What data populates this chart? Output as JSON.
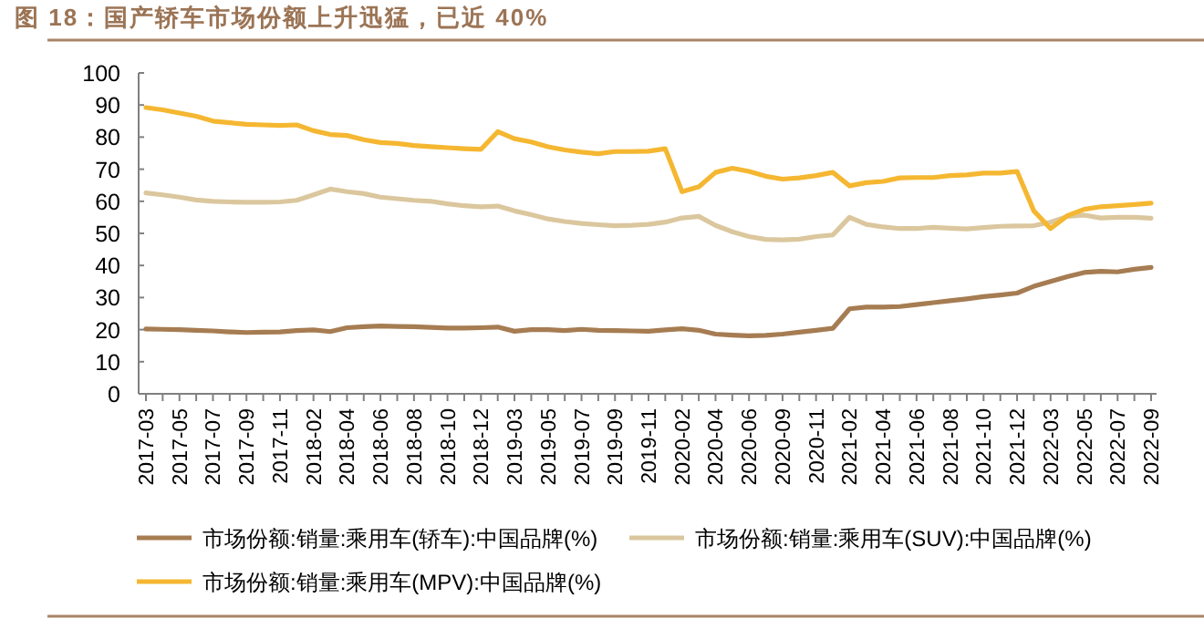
{
  "chart_data": {
    "type": "line",
    "title": "图 18：国产轿车市场份额上升迅猛，已近 40%",
    "categories": [
      "2017-03",
      null,
      "2017-05",
      null,
      "2017-07",
      null,
      "2017-09",
      null,
      "2017-11",
      null,
      "2018-02",
      null,
      "2018-04",
      null,
      "2018-06",
      null,
      "2018-08",
      null,
      "2018-10",
      null,
      "2018-12",
      null,
      "2019-03",
      null,
      "2019-05",
      null,
      "2019-07",
      null,
      "2019-09",
      null,
      "2019-11",
      null,
      "2020-02",
      null,
      "2020-04",
      null,
      "2020-06",
      null,
      "2020-09",
      null,
      "2020-11",
      null,
      "2021-02",
      null,
      "2021-04",
      null,
      "2021-06",
      null,
      "2021-08",
      null,
      "2021-10",
      null,
      "2021-12",
      null,
      "2022-03",
      null,
      "2022-05",
      null,
      "2022-07",
      null,
      "2022-09"
    ],
    "series": [
      {
        "name": "市场份额:销量:乘用车(轿车):中国品牌(%)",
        "color": "#a67c52",
        "values": [
          20.2,
          20.1,
          20,
          19.8,
          19.6,
          19.3,
          19.1,
          19.2,
          19.3,
          19.7,
          19.9,
          19.4,
          20.6,
          20.9,
          21.1,
          21,
          20.9,
          20.7,
          20.5,
          20.5,
          20.6,
          20.8,
          19.5,
          20,
          20,
          19.7,
          20.1,
          19.8,
          19.7,
          19.6,
          19.5,
          19.9,
          20.3,
          19.8,
          18.6,
          18.3,
          18.1,
          18.2,
          18.6,
          19.2,
          19.8,
          20.4,
          26.5,
          27,
          27,
          27.2,
          27.8,
          28.4,
          29,
          29.6,
          30.3,
          30.8,
          31.4,
          33.5,
          35,
          36.5,
          37.8,
          38.2,
          38,
          38.8,
          39.4
        ]
      },
      {
        "name": "市场份额:销量:乘用车(SUV):中国品牌(%)",
        "color": "#dbc79e",
        "values": [
          62.6,
          62,
          61.3,
          60.4,
          60,
          59.8,
          59.7,
          59.7,
          59.8,
          60.3,
          62,
          63.8,
          63,
          62.4,
          61.3,
          60.8,
          60.3,
          60,
          59.2,
          58.6,
          58.3,
          58.5,
          57,
          55.8,
          54.5,
          53.7,
          53.1,
          52.7,
          52.4,
          52.5,
          52.8,
          53.5,
          54.8,
          55.3,
          52.5,
          50.5,
          49,
          48.1,
          48,
          48.2,
          49,
          49.5,
          55,
          52.8,
          52,
          51.5,
          51.5,
          51.9,
          51.6,
          51.4,
          51.8,
          52.2,
          52.3,
          52.4,
          53.5,
          55.3,
          55.7,
          54.8,
          55,
          55,
          54.7
        ]
      },
      {
        "name": "市场份额:销量:乘用车(MPV):中国品牌(%)",
        "color": "#f5b731",
        "values": [
          89.2,
          88.5,
          87.5,
          86.5,
          85,
          84.5,
          84,
          83.8,
          83.6,
          83.8,
          82,
          80.8,
          80.5,
          79.2,
          78.3,
          78,
          77.4,
          77,
          76.7,
          76.4,
          76.2,
          81.7,
          79.5,
          78.5,
          77,
          76,
          75.3,
          74.8,
          75.5,
          75.5,
          75.6,
          76.4,
          63,
          64.5,
          69,
          70.3,
          69.3,
          67.8,
          66.9,
          67.3,
          68,
          69,
          64.8,
          65.8,
          66.2,
          67.3,
          67.4,
          67.4,
          68,
          68.2,
          68.8,
          68.8,
          69.3,
          57,
          51.5,
          55.5,
          57.5,
          58.3,
          58.6,
          59,
          59.4
        ]
      }
    ],
    "ylim": [
      0,
      100
    ],
    "yticks": [
      0,
      10,
      20,
      30,
      40,
      50,
      60,
      70,
      80,
      90,
      100
    ],
    "legend": "bottom",
    "grid": false,
    "marker": "none",
    "line_style": "solid"
  }
}
